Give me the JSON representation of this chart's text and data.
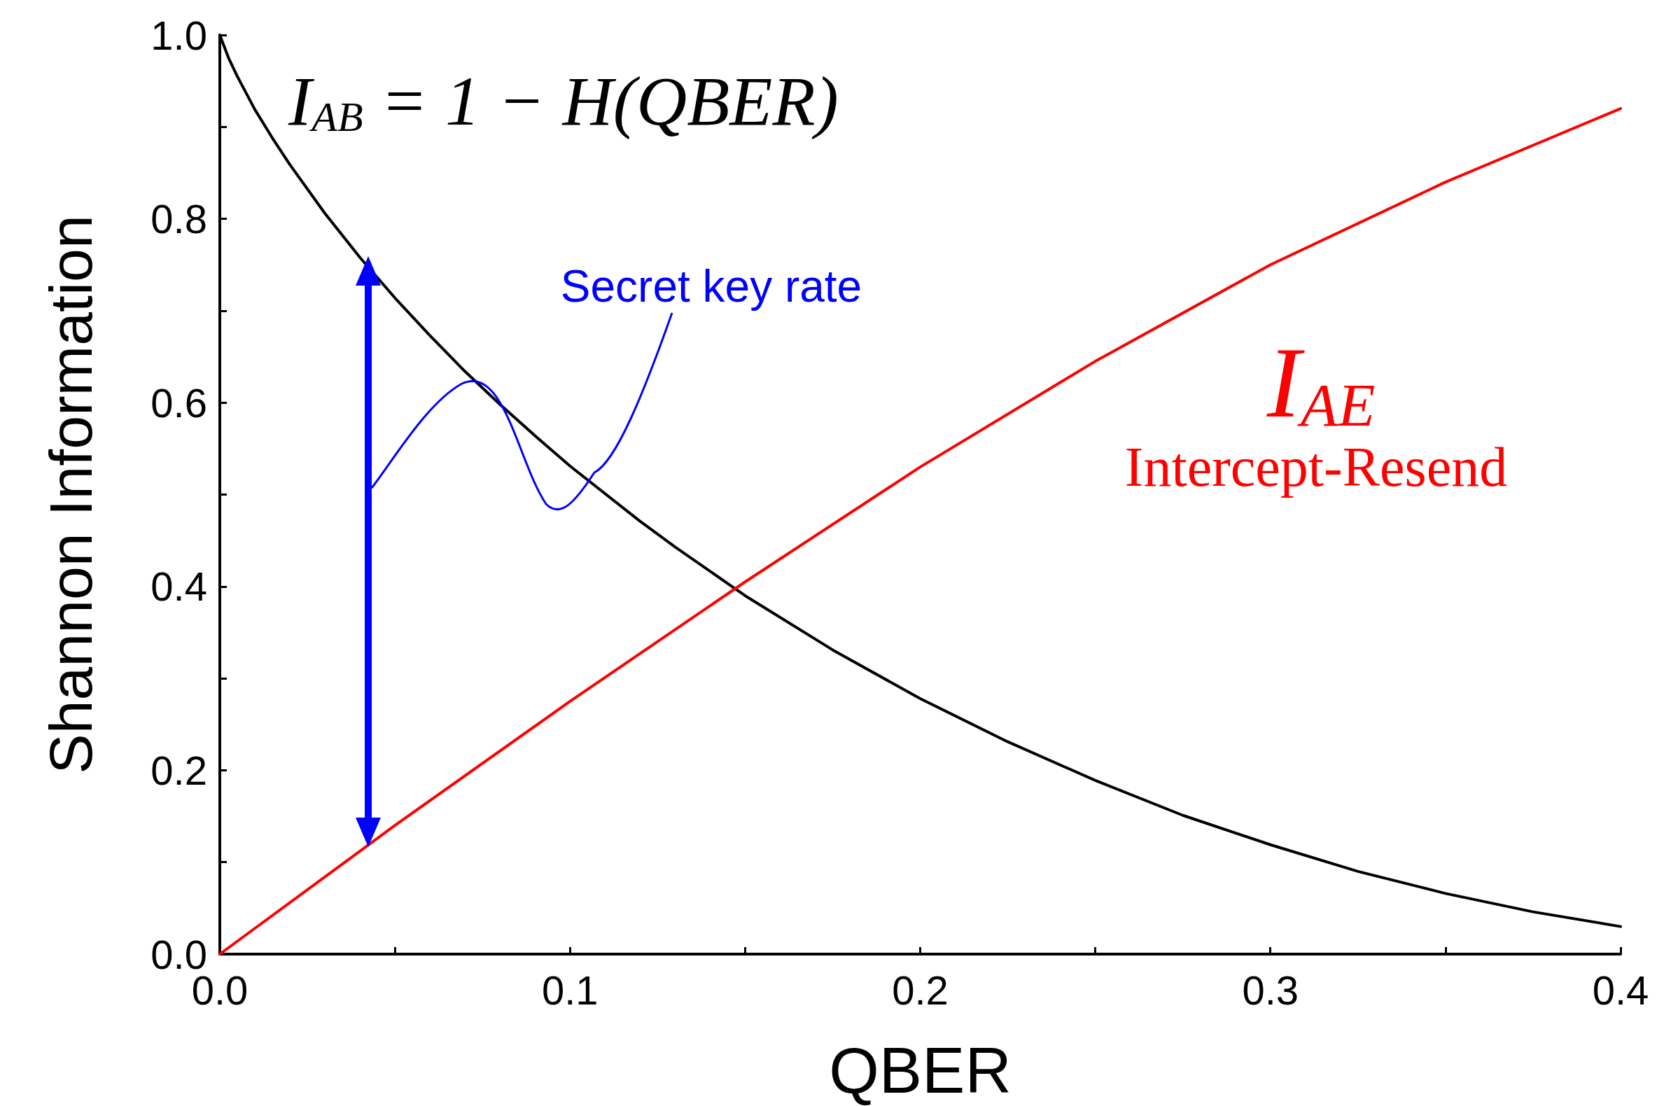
{
  "chart_data": {
    "type": "line",
    "xlabel": "QBER",
    "ylabel": "Shannon Information",
    "xlim": [
      0,
      0.4
    ],
    "ylim": [
      0,
      1
    ],
    "xticks": [
      {
        "value": 0,
        "label": "0.0"
      },
      {
        "value": 0.05,
        "label": null
      },
      0.1,
      {
        "value": 0.15,
        "label": null
      },
      0.2,
      {
        "value": 0.25,
        "label": null
      },
      0.3,
      {
        "value": 0.35,
        "label": null
      },
      0.4
    ],
    "yticks": [
      {
        "value": 0,
        "label": "0.0"
      },
      {
        "value": 0.1,
        "label": null
      },
      0.2,
      {
        "value": 0.3,
        "label": null
      },
      0.4,
      {
        "value": 0.5,
        "label": null
      },
      0.6,
      {
        "value": 0.7,
        "label": null
      },
      0.8,
      {
        "value": 0.9,
        "label": null
      },
      {
        "value": 1,
        "label": "1.0"
      }
    ],
    "grid": false,
    "marker": "none",
    "line_style": "solid",
    "series": [
      {
        "color": "#000000",
        "x": [
          0,
          0.0025,
          0.005,
          0.01,
          0.015,
          0.02,
          0.03,
          0.04,
          0.05,
          0.06,
          0.07,
          0.08,
          0.09,
          0.1,
          0.12,
          0.13,
          0.15,
          0.175,
          0.2,
          0.225,
          0.25,
          0.275,
          0.3,
          0.325,
          0.35,
          0.375,
          0.4
        ],
        "values": [
          1,
          0.975,
          0.955,
          0.919,
          0.888,
          0.859,
          0.806,
          0.758,
          0.714,
          0.673,
          0.634,
          0.598,
          0.564,
          0.531,
          0.471,
          0.443,
          0.39,
          0.331,
          0.278,
          0.231,
          0.189,
          0.151,
          0.119,
          0.09,
          0.066,
          0.046,
          0.03
        ]
      },
      {
        "color": "#ff0000",
        "x": [
          0,
          0.05,
          0.1,
          0.15,
          0.2,
          0.25,
          0.3,
          0.35,
          0.4
        ],
        "values": [
          0,
          0.14,
          0.275,
          0.405,
          0.53,
          0.645,
          0.75,
          0.84,
          0.92
        ]
      }
    ],
    "annotations": [
      "I$_{AB}$ = 1 − H(QBER)",
      "Secret key rate",
      "I$_{AE}$",
      "Intercept-Resend"
    ]
  }
}
